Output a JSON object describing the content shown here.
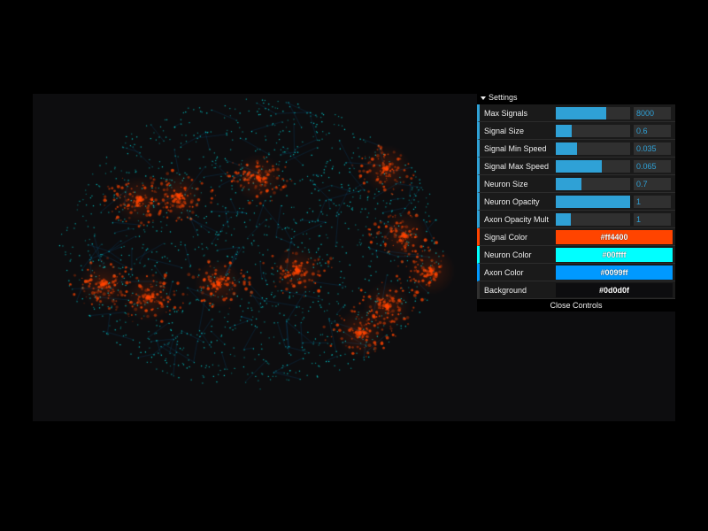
{
  "gui": {
    "folder_title": "Settings",
    "close_label": "Close Controls",
    "sliders": [
      {
        "label": "Max Signals",
        "value": "8000",
        "fill": 0.68
      },
      {
        "label": "Signal Size",
        "value": "0.6",
        "fill": 0.22
      },
      {
        "label": "Signal Min Speed",
        "value": "0.035",
        "fill": 0.28
      },
      {
        "label": "Signal Max Speed",
        "value": "0.065",
        "fill": 0.62
      },
      {
        "label": "Neuron Size",
        "value": "0.7",
        "fill": 0.35
      },
      {
        "label": "Neuron Opacity",
        "value": "1",
        "fill": 1.0
      },
      {
        "label": "Axon Opacity Mult",
        "value": "1",
        "fill": 0.2
      }
    ],
    "colors": [
      {
        "label": "Signal Color",
        "value": "#ff4400"
      },
      {
        "label": "Neuron Color",
        "value": "#00ffff"
      },
      {
        "label": "Axon Color",
        "value": "#0099ff"
      },
      {
        "label": "Background",
        "value": "#0d0d0f"
      }
    ]
  },
  "scene": {
    "background": "#0d0d0f",
    "axon_color": "#0099ff",
    "neuron_color": "#00ffff",
    "signal_color": "#ff4400"
  }
}
